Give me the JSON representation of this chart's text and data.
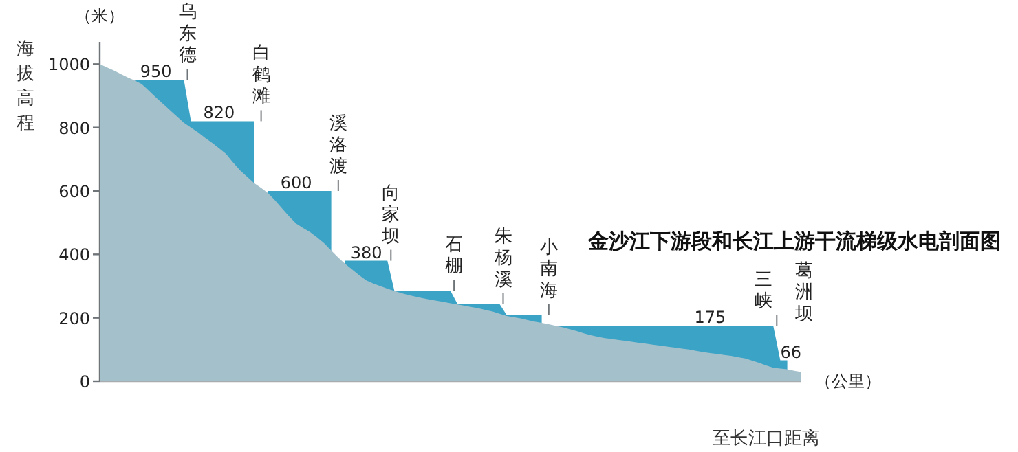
{
  "chart_data": {
    "type": "area",
    "title": "金沙江下游段和长江上游干流梯级水电剖面图",
    "xlabel": "至长江口距离",
    "ylabel": "海拔高程",
    "categories": [
      null,
      null,
      null,
      null,
      null,
      null,
      null,
      null,
      null,
      null,
      null,
      null,
      null,
      null,
      null,
      null,
      null,
      null,
      null,
      null,
      null,
      null,
      null,
      null,
      null,
      null,
      null,
      null,
      null,
      null,
      null,
      null,
      null,
      null,
      null,
      null,
      null,
      null,
      null,
      null,
      null,
      null,
      null,
      null,
      null,
      null,
      null,
      null,
      null,
      null,
      null,
      null,
      null,
      null,
      null,
      null,
      null,
      null,
      null,
      null,
      null,
      null,
      null,
      null,
      null,
      null,
      null,
      null,
      null,
      null,
      null,
      null,
      null,
      null,
      null,
      null,
      null,
      null,
      null,
      null,
      null,
      null,
      null,
      null,
      null,
      null,
      null,
      null,
      null,
      null,
      null,
      null,
      null,
      null,
      null,
      null,
      null,
      null,
      null,
      null,
      null
    ],
    "ylim": [
      0,
      1200
    ],
    "yticks": [
      0,
      200,
      400,
      600,
      800,
      1000
    ],
    "tick_labels": "y",
    "grid": false,
    "annotations": [
      "乌东德",
      "白鹤滩",
      "溪洛渡",
      "向家坝",
      "石棚",
      "朱杨溪",
      "小南海",
      "三峡",
      "葛洲坝",
      "（米）",
      "（公里）"
    ],
    "series": [
      {
        "color": "#3ba3c6",
        "values": [
          null,
          null,
          null,
          null,
          null,
          950,
          950,
          950,
          950,
          950,
          950,
          950,
          950,
          820,
          820,
          820,
          820,
          820,
          820,
          820,
          820,
          820,
          820,
          null,
          600,
          600,
          600,
          600,
          600,
          600,
          600,
          600,
          600,
          600,
          null,
          380,
          380,
          380,
          380,
          380,
          380,
          380,
          285,
          285,
          285,
          285,
          285,
          285,
          285,
          285,
          285,
          243,
          243,
          243,
          243,
          243,
          243,
          243,
          209,
          209,
          209,
          209,
          209,
          209,
          null,
          175,
          175,
          175,
          175,
          175,
          175,
          175,
          175,
          175,
          175,
          175,
          175,
          175,
          175,
          175,
          175,
          175,
          175,
          175,
          175,
          175,
          175,
          175,
          175,
          175,
          175,
          175,
          175,
          175,
          175,
          175,
          175,
          66,
          66,
          null,
          null
        ],
        "value_labels": [
          null,
          null,
          null,
          null,
          null,
          null,
          null,
          null,
          "950",
          null,
          null,
          null,
          null,
          null,
          null,
          null,
          null,
          "820",
          null,
          null,
          null,
          null,
          null,
          null,
          null,
          null,
          null,
          null,
          "600",
          null,
          null,
          null,
          null,
          null,
          null,
          null,
          null,
          null,
          "380",
          null,
          null,
          null,
          null,
          null,
          null,
          null,
          null,
          null,
          null,
          null,
          null,
          null,
          null,
          null,
          null,
          null,
          null,
          null,
          null,
          null,
          null,
          null,
          null,
          null,
          null,
          null,
          null,
          null,
          null,
          null,
          null,
          null,
          null,
          null,
          null,
          null,
          null,
          null,
          null,
          null,
          null,
          null,
          null,
          null,
          null,
          null,
          null,
          "175",
          null,
          null,
          null,
          null,
          null,
          null,
          null,
          null,
          null,
          "66",
          null,
          null,
          null
        ]
      },
      {
        "color": "#a4c0cb",
        "values": [
          1000,
          990,
          980,
          969,
          958,
          948,
          937,
          916,
          895,
          875,
          855,
          835,
          815,
          800,
          785,
          768,
          752,
          735,
          717,
          690,
          665,
          645,
          625,
          610,
          593,
          570,
          545,
          520,
          497,
          483,
          470,
          453,
          435,
          412,
          390,
          370,
          352,
          334,
          318,
          308,
          300,
          292,
          285,
          278,
          272,
          267,
          262,
          258,
          254,
          250,
          246,
          242,
          238,
          234,
          230,
          225,
          220,
          213,
          206,
          202,
          198,
          193,
          188,
          184,
          180,
          175,
          170,
          164,
          158,
          151,
          145,
          140,
          136,
          133,
          130,
          127,
          124,
          121,
          118,
          115,
          112,
          109,
          106,
          103,
          100,
          96,
          92,
          89,
          86,
          83,
          80,
          76,
          72,
          65,
          58,
          50,
          43,
          40,
          38,
          33,
          29
        ]
      }
    ]
  }
}
